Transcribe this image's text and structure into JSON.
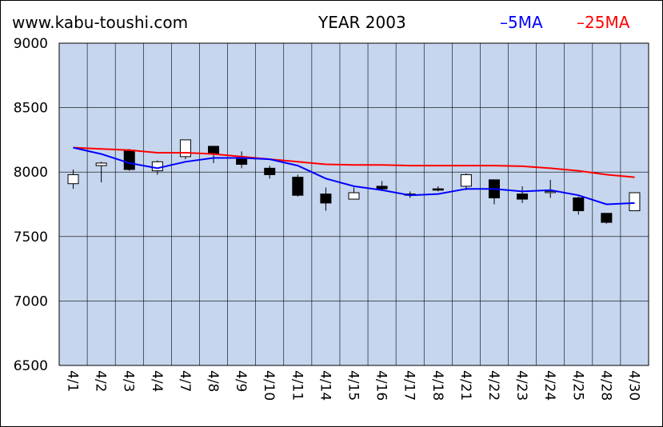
{
  "header": {
    "site": "www.kabu-toushi.com",
    "title": "YEAR 2003"
  },
  "legend": [
    {
      "label": "5MA",
      "color": "#0000ff"
    },
    {
      "label": "25MA",
      "color": "#ff0000"
    }
  ],
  "colors": {
    "plot_bg": "#c6d6ee",
    "grid": "#000000",
    "up_candle": "#ffffff",
    "down_candle": "#000000"
  },
  "chart_data": {
    "type": "candlestick",
    "ylim": [
      6500,
      9000
    ],
    "yticks": [
      6500,
      7000,
      7500,
      8000,
      8500,
      9000
    ],
    "categories": [
      "4/1",
      "4/2",
      "4/3",
      "4/4",
      "4/7",
      "4/8",
      "4/9",
      "4/10",
      "4/11",
      "4/14",
      "4/15",
      "4/16",
      "4/17",
      "4/18",
      "4/21",
      "4/22",
      "4/23",
      "4/24",
      "4/25",
      "4/28",
      "4/30"
    ],
    "candles": [
      {
        "o": 7910,
        "h": 8020,
        "l": 7870,
        "c": 7980
      },
      {
        "o": 8050,
        "h": 8080,
        "l": 7920,
        "c": 8070
      },
      {
        "o": 8170,
        "h": 8180,
        "l": 8010,
        "c": 8020
      },
      {
        "o": 8010,
        "h": 8090,
        "l": 7980,
        "c": 8080
      },
      {
        "o": 8120,
        "h": 8250,
        "l": 8100,
        "c": 8250
      },
      {
        "o": 8200,
        "h": 8200,
        "l": 8070,
        "c": 8140
      },
      {
        "o": 8100,
        "h": 8160,
        "l": 8030,
        "c": 8060
      },
      {
        "o": 8030,
        "h": 8050,
        "l": 7950,
        "c": 7980
      },
      {
        "o": 7960,
        "h": 7980,
        "l": 7810,
        "c": 7820
      },
      {
        "o": 7830,
        "h": 7880,
        "l": 7700,
        "c": 7760
      },
      {
        "o": 7790,
        "h": 7880,
        "l": 7790,
        "c": 7840
      },
      {
        "o": 7890,
        "h": 7930,
        "l": 7860,
        "c": 7870
      },
      {
        "o": 7830,
        "h": 7850,
        "l": 7800,
        "c": 7820
      },
      {
        "o": 7870,
        "h": 7890,
        "l": 7850,
        "c": 7860
      },
      {
        "o": 7890,
        "h": 7990,
        "l": 7860,
        "c": 7980
      },
      {
        "o": 7940,
        "h": 7940,
        "l": 7750,
        "c": 7800
      },
      {
        "o": 7830,
        "h": 7890,
        "l": 7760,
        "c": 7790
      },
      {
        "o": 7850,
        "h": 7940,
        "l": 7800,
        "c": 7850
      },
      {
        "o": 7800,
        "h": 7810,
        "l": 7670,
        "c": 7700
      },
      {
        "o": 7680,
        "h": 7680,
        "l": 7600,
        "c": 7610
      },
      {
        "o": 7700,
        "h": 7840,
        "l": 7700,
        "c": 7840
      }
    ],
    "ma5": [
      8190,
      8140,
      8070,
      8030,
      8080,
      8110,
      8110,
      8100,
      8050,
      7950,
      7890,
      7860,
      7820,
      7830,
      7870,
      7870,
      7850,
      7860,
      7820,
      7750,
      7760
    ],
    "ma25": [
      8190,
      8180,
      8170,
      8150,
      8150,
      8140,
      8120,
      8100,
      8080,
      8060,
      8055,
      8055,
      8050,
      8050,
      8050,
      8050,
      8045,
      8030,
      8010,
      7980,
      7960
    ]
  }
}
